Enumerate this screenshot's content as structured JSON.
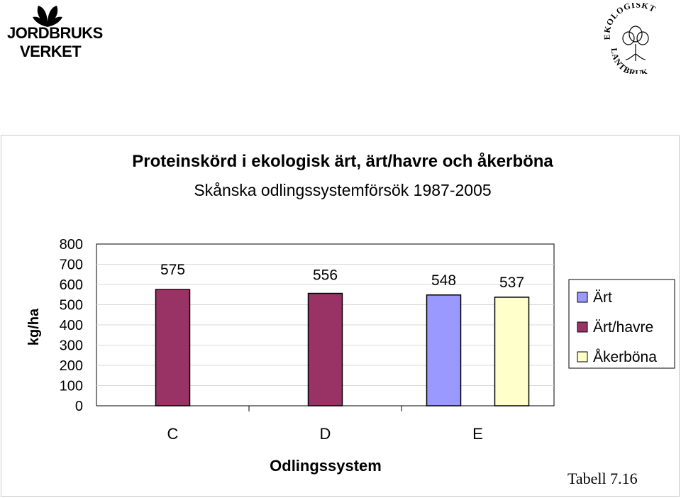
{
  "logos": {
    "left_line1": "JORDBRUKS",
    "left_line2": "VERKET",
    "right_top_arc": "EKOLOGISKT",
    "right_bottom_arc": "LANTBRUK"
  },
  "page_caption": "Tabell 7.16",
  "colors": {
    "art": "#9999ff",
    "art_havre": "#993366",
    "akerbona": "#ffffcc"
  },
  "chart_data": {
    "type": "bar",
    "title": "Proteinskörd i ekologisk ärt, ärt/havre och åkerböna",
    "subtitle": "Skånska odlingssystemförsök 1987-2005",
    "xlabel": "Odlingssystem",
    "ylabel": "kg/ha",
    "categories": [
      "C",
      "D",
      "E"
    ],
    "ylim": [
      0,
      800
    ],
    "yticks": [
      "800",
      "700",
      "600",
      "500",
      "400",
      "300",
      "200",
      "100",
      "0"
    ],
    "grid": true,
    "legend_position": "right",
    "series": [
      {
        "name": "Ärt",
        "color": "#9999ff",
        "values": [
          null,
          null,
          548
        ]
      },
      {
        "name": "Ärt/havre",
        "color": "#993366",
        "values": [
          575,
          556,
          null
        ]
      },
      {
        "name": "Åkerböna",
        "color": "#ffffcc",
        "values": [
          null,
          null,
          537
        ]
      }
    ],
    "data_labels": [
      {
        "series": "Ärt/havre",
        "category": "C",
        "text": "575"
      },
      {
        "series": "Ärt/havre",
        "category": "D",
        "text": "556"
      },
      {
        "series": "Ärt",
        "category": "E",
        "text": "548"
      },
      {
        "series": "Åkerböna",
        "category": "E",
        "text": "537"
      }
    ]
  }
}
